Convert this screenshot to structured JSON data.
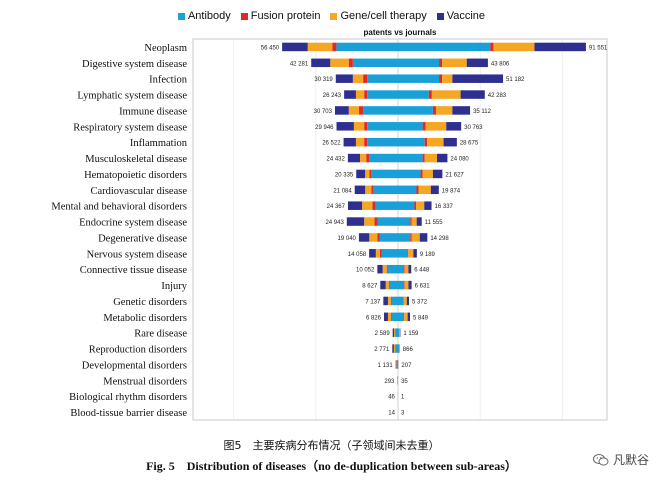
{
  "chart_data": {
    "type": "bar",
    "orientation": "horizontal-diverging",
    "title": "patents vs journals",
    "legend_placement": "top",
    "series": [
      {
        "name": "Antibody",
        "color": "#1aa0d8"
      },
      {
        "name": "Fusion protein",
        "color": "#e02a2a"
      },
      {
        "name": "Gene/cell therapy",
        "color": "#f5a623"
      },
      {
        "name": "Vaccine",
        "color": "#2e2f8f"
      }
    ],
    "categories": [
      "Neoplasm",
      "Digestive system disease",
      "Infection",
      "Lymphatic system disease",
      "Immune disease",
      "Respiratory system disease",
      "Inflammation",
      "Musculoskeletal disease",
      "Hematopoietic disorders",
      "Cardiovascular disease",
      "Mental and behavioral disorders",
      "Endocrine system disease",
      "Degenerative disease",
      "Nervous system disease",
      "Connective tissue disease",
      "Injury",
      "Genetic disorders",
      "Metabolic disorders",
      "Rare disease",
      "Reproduction disorders",
      "Developmental disorders",
      "Menstrual disorders",
      "Biological rhythm disorders",
      "Blood-tissue barrier disease"
    ],
    "left_totals": [
      56450,
      42281,
      30319,
      26243,
      30703,
      29946,
      26522,
      24432,
      20335,
      21084,
      24367,
      24943,
      19040,
      14058,
      10052,
      8627,
      7137,
      6826,
      2589,
      2771,
      1131,
      293,
      46,
      14
    ],
    "right_totals": [
      91551,
      43806,
      51182,
      42283,
      35112,
      30763,
      28675,
      24080,
      21627,
      19874,
      16337,
      11555,
      14298,
      9189,
      6448,
      6631,
      5372,
      5849,
      1159,
      866,
      207,
      35,
      1,
      3
    ],
    "left_segments": [
      [
        30000,
        2000,
        12000,
        12450
      ],
      [
        22000,
        2000,
        9000,
        9281
      ],
      [
        15000,
        2000,
        5000,
        8319
      ],
      [
        15000,
        1500,
        4000,
        5743
      ],
      [
        17000,
        2000,
        5000,
        6703
      ],
      [
        15000,
        1500,
        5000,
        8446
      ],
      [
        15000,
        1500,
        4000,
        6022
      ],
      [
        14000,
        1500,
        3000,
        5932
      ],
      [
        13000,
        1000,
        2000,
        4335
      ],
      [
        12000,
        1000,
        3000,
        5084
      ],
      [
        11000,
        1500,
        5000,
        6867
      ],
      [
        10000,
        1500,
        5000,
        8443
      ],
      [
        9000,
        1000,
        4000,
        5040
      ],
      [
        8000,
        800,
        2000,
        3258
      ],
      [
        5000,
        500,
        2000,
        2552
      ],
      [
        4000,
        500,
        1500,
        2627
      ],
      [
        3000,
        400,
        1500,
        2237
      ],
      [
        3000,
        400,
        1500,
        1926
      ],
      [
        1200,
        200,
        500,
        689
      ],
      [
        1200,
        200,
        600,
        771
      ],
      [
        500,
        100,
        200,
        331
      ],
      [
        120,
        20,
        60,
        93
      ],
      [
        20,
        5,
        10,
        11
      ],
      [
        6,
        2,
        3,
        3
      ]
    ],
    "right_segments": [
      [
        45000,
        1500,
        20000,
        25051
      ],
      [
        20000,
        1500,
        12000,
        10306
      ],
      [
        20000,
        1500,
        5000,
        24682
      ],
      [
        15000,
        1500,
        14000,
        11783
      ],
      [
        17000,
        1500,
        8000,
        8612
      ],
      [
        12000,
        1500,
        10000,
        7263
      ],
      [
        13000,
        1200,
        8000,
        6475
      ],
      [
        12000,
        1000,
        6000,
        5080
      ],
      [
        11000,
        1000,
        5000,
        4627
      ],
      [
        9000,
        1000,
        6000,
        3874
      ],
      [
        8000,
        800,
        4000,
        3537
      ],
      [
        6000,
        600,
        2500,
        2455
      ],
      [
        6000,
        600,
        4000,
        3698
      ],
      [
        4500,
        500,
        2500,
        1689
      ],
      [
        3000,
        300,
        1800,
        1348
      ],
      [
        3000,
        300,
        1800,
        1531
      ],
      [
        2500,
        300,
        1500,
        1072
      ],
      [
        2700,
        300,
        1700,
        1149
      ],
      [
        600,
        60,
        300,
        199
      ],
      [
        450,
        50,
        250,
        116
      ],
      [
        110,
        10,
        50,
        37
      ],
      [
        18,
        2,
        8,
        7
      ],
      [
        1,
        0,
        0,
        0
      ],
      [
        2,
        0,
        1,
        0
      ]
    ],
    "left_labels": [
      "56 450",
      "42 281",
      "30 319",
      "26 243",
      "30 703",
      "29 946",
      "26 522",
      "24 432",
      "20 335",
      "21 084",
      "24 367",
      "24 943",
      "19 040",
      "14 058",
      "10 052",
      "8 627",
      "7 137",
      "6 826",
      "2 589",
      "2 771",
      "1 131",
      "293",
      "46",
      "14"
    ],
    "right_labels": [
      "91 551",
      "43 806",
      "51 182",
      "42 283",
      "35 112",
      "30 763",
      "28 675",
      "24 080",
      "21 627",
      "19 874",
      "16 337",
      "11 555",
      "14 298",
      "9 189",
      "6 448",
      "6 631",
      "5 372",
      "5 849",
      "1 159",
      "866",
      "207",
      "35",
      "1",
      "3"
    ],
    "xlim": [
      -95000,
      95000
    ],
    "grid": true
  },
  "captions": {
    "cn": "图5　主要疾病分布情况（子领域间未去重）",
    "en": "Fig. 5　Distribution of diseases（no de-duplication between sub-areas）"
  },
  "watermark": {
    "text": "凡默谷",
    "icon": "wechat-icon"
  }
}
